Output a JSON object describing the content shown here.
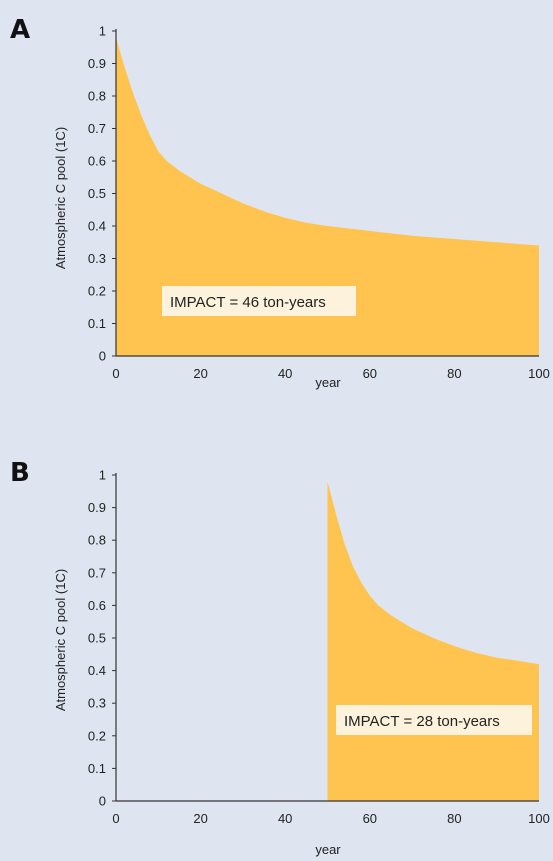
{
  "chart_data": [
    {
      "panel": "A",
      "type": "area",
      "xlabel": "year",
      "ylabel": "Atmospheric C pool (1C)",
      "xlim": [
        0,
        100
      ],
      "ylim": [
        0,
        1
      ],
      "x_ticks": [
        "0",
        "20",
        "40",
        "60",
        "80",
        "100"
      ],
      "y_ticks": [
        "0",
        "0.1",
        "0.2",
        "0.3",
        "0.4",
        "0.5",
        "0.6",
        "0.7",
        "0.8",
        "0.9",
        "1"
      ],
      "x": [
        0,
        2,
        4,
        6,
        8,
        10,
        12,
        15,
        20,
        25,
        30,
        35,
        40,
        45,
        50,
        60,
        70,
        80,
        90,
        100
      ],
      "y": [
        0.98,
        0.89,
        0.81,
        0.74,
        0.68,
        0.63,
        0.6,
        0.57,
        0.53,
        0.5,
        0.47,
        0.445,
        0.425,
        0.41,
        0.4,
        0.385,
        0.37,
        0.36,
        0.35,
        0.34
      ],
      "annotation": "IMPACT = 46 ton-years",
      "color": "#ffc44f"
    },
    {
      "panel": "B",
      "type": "area",
      "xlabel": "year",
      "ylabel": "Atmospheric C pool (1C)",
      "xlim": [
        0,
        100
      ],
      "ylim": [
        0,
        1
      ],
      "x_ticks": [
        "0",
        "20",
        "40",
        "60",
        "80",
        "100"
      ],
      "y_ticks": [
        "0",
        "0.1",
        "0.2",
        "0.3",
        "0.4",
        "0.5",
        "0.6",
        "0.7",
        "0.8",
        "0.9",
        "1"
      ],
      "x": [
        50,
        50,
        52,
        54,
        56,
        58,
        60,
        62,
        65,
        70,
        75,
        80,
        85,
        90,
        95,
        100
      ],
      "y": [
        0,
        0.98,
        0.88,
        0.79,
        0.72,
        0.67,
        0.63,
        0.6,
        0.57,
        0.53,
        0.5,
        0.475,
        0.455,
        0.44,
        0.43,
        0.42
      ],
      "annotation": "IMPACT = 28 ton-years",
      "color": "#ffc44f"
    }
  ]
}
